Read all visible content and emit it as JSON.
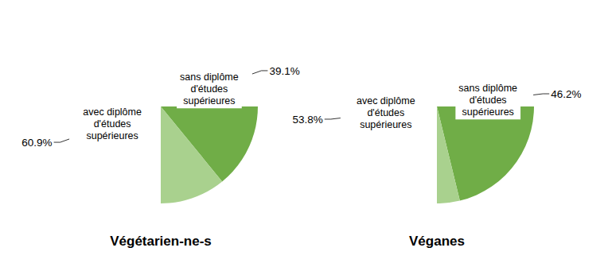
{
  "chart_data": [
    {
      "type": "pie",
      "title": "Végétarien-ne-s",
      "categories": [
        "sans diplôme d'études supérieures",
        "avec diplôme d'études supérieures"
      ],
      "values": [
        39.1,
        60.9
      ],
      "value_labels": [
        "39.1%",
        "60.9%"
      ],
      "colors": [
        "#70ad47",
        "#a9d18e"
      ],
      "data_labels": true
    },
    {
      "type": "pie",
      "title": "Véganes",
      "categories": [
        "sans diplôme d'études supérieures",
        "avec diplôme d'études supérieures"
      ],
      "values": [
        46.2,
        53.8
      ],
      "value_labels": [
        "46.2%",
        "53.8%"
      ],
      "colors": [
        "#70ad47",
        "#a9d18e"
      ],
      "data_labels": true
    }
  ]
}
